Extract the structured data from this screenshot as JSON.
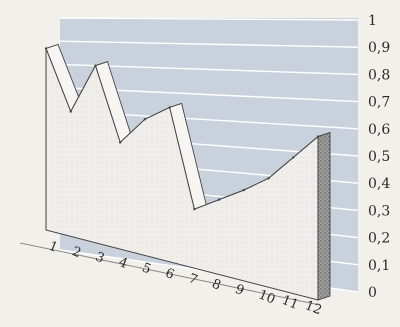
{
  "chart_data": {
    "type": "area",
    "title": "",
    "xlabel": "",
    "ylabel": "",
    "categories": [
      "1",
      "2",
      "3",
      "4",
      "5",
      "6",
      "7",
      "8",
      "9",
      "10",
      "11",
      "12"
    ],
    "series": [
      {
        "values": [
          0.8,
          0.55,
          0.78,
          0.47,
          0.6,
          0.68,
          0.26,
          0.33,
          0.4,
          0.48,
          0.6,
          0.72
        ]
      }
    ],
    "y_ticks": [
      "0",
      "0,1",
      "0,2",
      "0,3",
      "0,4",
      "0,5",
      "0,6",
      "0,7",
      "0,8",
      "0,9",
      "1"
    ],
    "ylim": [
      0,
      1
    ],
    "projection": "3d",
    "grid": true,
    "colors": {
      "wall": "#c9d2dc",
      "gridline": "#ffffff",
      "area_fill": "#ecebe6",
      "ridge_fill": "#8e8e8e",
      "outline": "#444444"
    }
  }
}
